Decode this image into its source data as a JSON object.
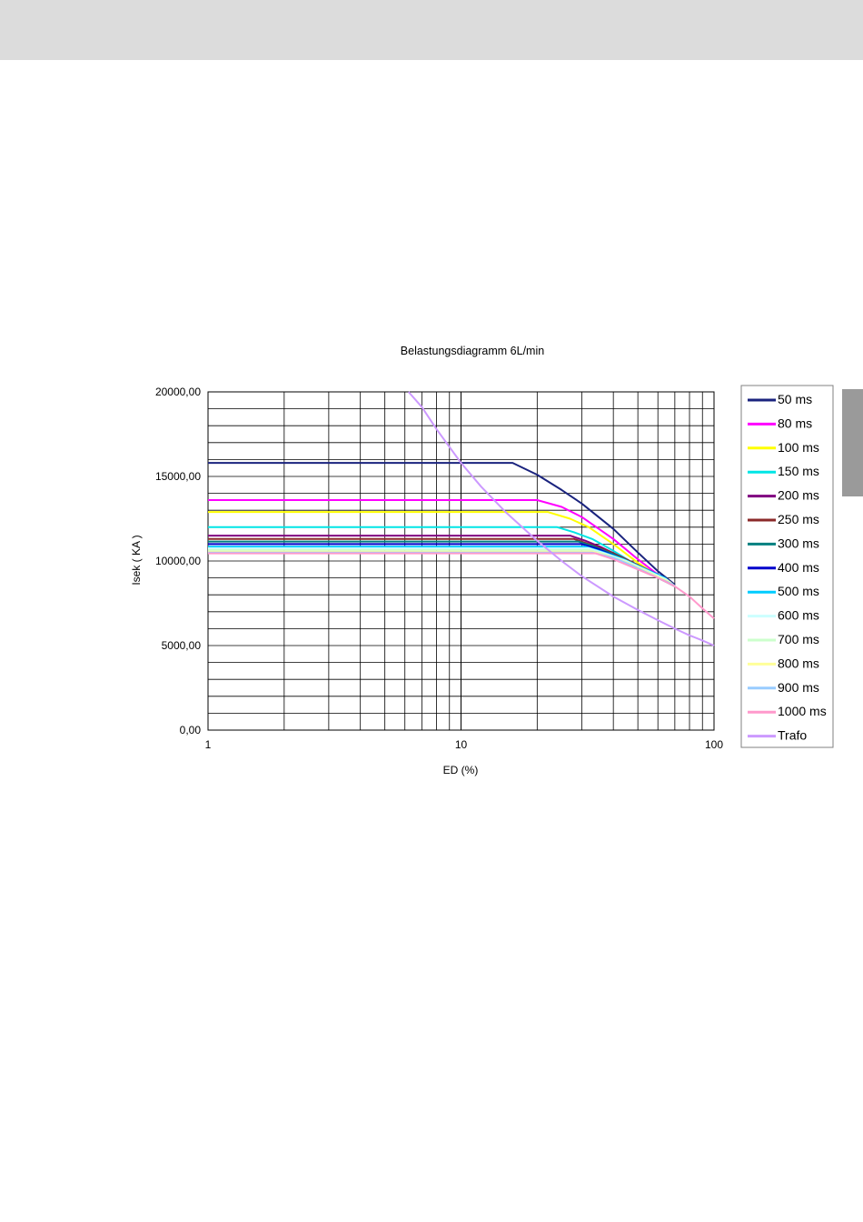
{
  "chart_data": {
    "type": "line",
    "title": "Belastungsdiagramm 6L/min",
    "xlabel": "ED (%)",
    "ylabel": "Isek ( KA )",
    "x_scale": "log",
    "xlim": [
      1,
      100
    ],
    "ylim": [
      0,
      20000
    ],
    "x_ticks": [
      1,
      10,
      100
    ],
    "x_tick_labels": [
      "1",
      "10",
      "100"
    ],
    "y_ticks": [
      0,
      5000,
      10000,
      15000,
      20000
    ],
    "y_tick_labels": [
      "0,00",
      "5000,00",
      "10000,00",
      "15000,00",
      "20000,00"
    ],
    "grid": true,
    "legend_position": "right",
    "series": [
      {
        "name": "50 ms",
        "color": "#1a237e",
        "x": [
          1,
          16,
          20,
          25,
          30,
          40,
          50,
          60,
          70
        ],
        "y": [
          15800,
          15800,
          15100,
          14200,
          13400,
          11900,
          10500,
          9400,
          8600
        ]
      },
      {
        "name": "80 ms",
        "color": "#ff00ff",
        "x": [
          1,
          20,
          25,
          30,
          40,
          50,
          60,
          70
        ],
        "y": [
          13600,
          13600,
          13200,
          12600,
          11300,
          10100,
          9200,
          8500
        ]
      },
      {
        "name": "100 ms",
        "color": "#ffff00",
        "x": [
          1,
          22,
          27,
          32,
          40,
          50,
          60,
          70
        ],
        "y": [
          12900,
          12900,
          12500,
          12000,
          11000,
          9900,
          9100,
          8500
        ]
      },
      {
        "name": "150 ms",
        "color": "#00e5e5",
        "x": [
          1,
          24,
          28,
          33,
          40,
          50,
          60,
          70
        ],
        "y": [
          12000,
          12000,
          11700,
          11300,
          10600,
          9700,
          9000,
          8500
        ]
      },
      {
        "name": "200 ms",
        "color": "#800080",
        "x": [
          1,
          27,
          31,
          36,
          45,
          55,
          70
        ],
        "y": [
          11500,
          11500,
          11200,
          10800,
          10100,
          9400,
          8500
        ]
      },
      {
        "name": "250 ms",
        "color": "#8b2a2a",
        "x": [
          1,
          28,
          32,
          38,
          48,
          58,
          70
        ],
        "y": [
          11300,
          11300,
          11000,
          10600,
          9900,
          9300,
          8500
        ]
      },
      {
        "name": "300 ms",
        "color": "#008080",
        "x": [
          1,
          29,
          33,
          40,
          50,
          60,
          70
        ],
        "y": [
          11150,
          11150,
          10900,
          10400,
          9700,
          9200,
          8500
        ]
      },
      {
        "name": "400 ms",
        "color": "#0000cc",
        "x": [
          1,
          30,
          35,
          42,
          52,
          62,
          70
        ],
        "y": [
          11000,
          11000,
          10700,
          10200,
          9600,
          9100,
          8500
        ]
      },
      {
        "name": "500 ms",
        "color": "#00ccff",
        "x": [
          1,
          31,
          36,
          44,
          54,
          64,
          70
        ],
        "y": [
          10850,
          10850,
          10550,
          10100,
          9500,
          9000,
          8500
        ]
      },
      {
        "name": "600 ms",
        "color": "#ccffff",
        "x": [
          1,
          32,
          37,
          45,
          55,
          65,
          70
        ],
        "y": [
          10750,
          10750,
          10450,
          10000,
          9400,
          8900,
          8500
        ]
      },
      {
        "name": "700 ms",
        "color": "#ccffcc",
        "x": [
          1,
          32,
          38,
          46,
          56,
          66,
          70
        ],
        "y": [
          10650,
          10650,
          10350,
          9900,
          9300,
          8800,
          8500
        ]
      },
      {
        "name": "800 ms",
        "color": "#ffff99",
        "x": [
          1,
          33,
          39,
          47,
          57,
          67,
          70
        ],
        "y": [
          10550,
          10550,
          10250,
          9800,
          9200,
          8750,
          8500
        ]
      },
      {
        "name": "900 ms",
        "color": "#99ccff",
        "x": [
          1,
          33,
          40,
          48,
          58,
          68,
          70
        ],
        "y": [
          10500,
          10500,
          10200,
          9700,
          9100,
          8650,
          8500
        ]
      },
      {
        "name": "1000 ms",
        "color": "#ff99cc",
        "x": [
          1,
          34,
          40,
          50,
          60,
          70,
          80,
          90,
          100
        ],
        "y": [
          10450,
          10450,
          10100,
          9500,
          9000,
          8500,
          7900,
          7200,
          6600
        ]
      },
      {
        "name": "Trafo",
        "color": "#cc99ff",
        "x": [
          6.2,
          7,
          8,
          10,
          12,
          15,
          20,
          25,
          30,
          40,
          50,
          60,
          70,
          80,
          90,
          100
        ],
        "y": [
          20000,
          19100,
          17800,
          15800,
          14400,
          12900,
          11200,
          10000,
          9100,
          7900,
          7100,
          6500,
          6000,
          5600,
          5300,
          5000
        ]
      }
    ]
  }
}
